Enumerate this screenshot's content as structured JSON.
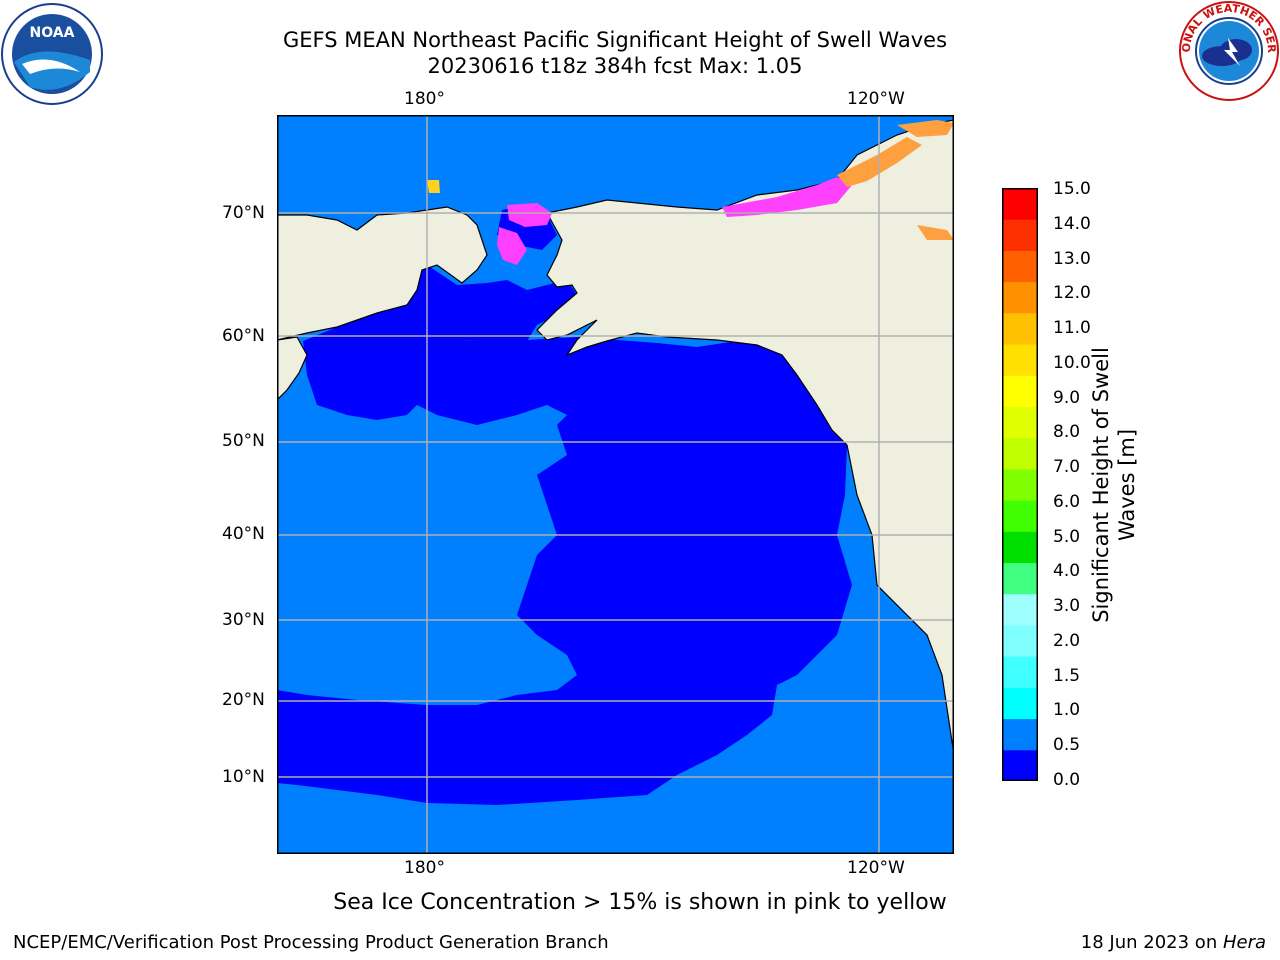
{
  "header": {
    "title_line1": "GEFS MEAN Northeast Pacific Significant Height of Swell Waves",
    "title_line2": "20230616 t18z 384h fcst   Max: 1.05"
  },
  "logos": {
    "left": {
      "icon": "noaa-logo-icon",
      "text": "NOAA"
    },
    "right": {
      "icon": "nws-logo-icon",
      "text": "NATIONAL WEATHER SERVICE"
    }
  },
  "map": {
    "lon_labels_top": [
      "180°",
      "120°W"
    ],
    "lon_labels_bottom": [
      "180°",
      "120°W"
    ],
    "lat_labels": [
      "70°N",
      "60°N",
      "50°N",
      "40°N",
      "30°N",
      "20°N",
      "10°N"
    ],
    "colors": {
      "land": "#efefdf",
      "sea_low": "#0000ff",
      "sea_mid": "#0080ff",
      "ice_pink": "#ff40ff",
      "ice_orange": "#ffa040",
      "ice_yellow": "#ffd020",
      "grid": "#b0b0b0"
    }
  },
  "colorbar": {
    "title_line1": "Significant Height of Swell",
    "title_line2": "Waves [m]",
    "ticks": [
      "15.0",
      "14.0",
      "13.0",
      "12.0",
      "11.0",
      "10.0",
      "9.0",
      "8.0",
      "7.0",
      "6.0",
      "5.0",
      "4.0",
      "3.0",
      "2.0",
      "1.5",
      "1.0",
      "0.5",
      "0.0"
    ],
    "colors_bottom_to_top": [
      "#0000ff",
      "#0080ff",
      "#00ffff",
      "#40ffff",
      "#80ffff",
      "#a0ffff",
      "#40ff80",
      "#00e000",
      "#40ff00",
      "#80ff00",
      "#c0ff00",
      "#e0ff00",
      "#ffff00",
      "#ffe000",
      "#ffc000",
      "#ff9000",
      "#ff6000",
      "#ff3000",
      "#ff0000"
    ]
  },
  "caption": "Sea Ice Concentration > 15% is shown in pink to yellow",
  "footer": {
    "left": "NCEP/EMC/Verification Post Processing Product Generation Branch",
    "right_prefix": "18 Jun 2023 on ",
    "right_host": "Hera"
  }
}
